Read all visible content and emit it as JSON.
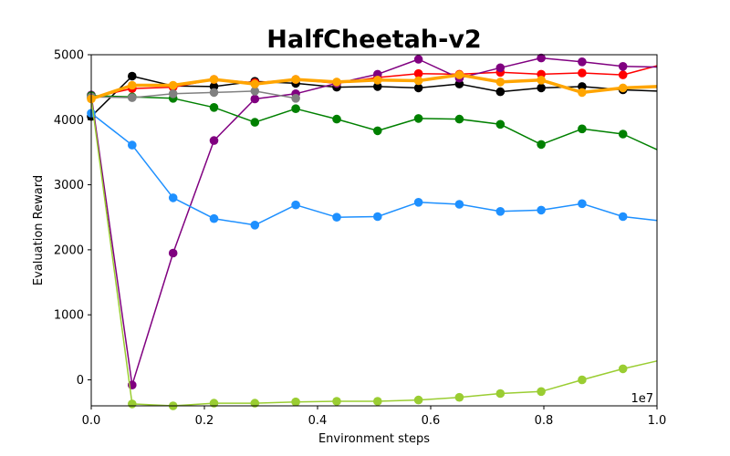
{
  "chart_data": {
    "type": "line",
    "title": "HalfCheetah-v2",
    "xlabel": "Environment steps",
    "ylabel": "Evaluation Reward",
    "x_scale_label": "1e7",
    "xlim": [
      0,
      1.0
    ],
    "ylim": [
      -400,
      5000
    ],
    "xticks": [
      0.0,
      0.2,
      0.4,
      0.6,
      0.8,
      1.0
    ],
    "xtick_labels": [
      "0.0",
      "0.2",
      "0.4",
      "0.6",
      "0.8",
      "1.0"
    ],
    "yticks": [
      0,
      1000,
      2000,
      3000,
      4000,
      5000
    ],
    "ytick_labels": [
      "0",
      "1000",
      "2000",
      "3000",
      "4000",
      "5000"
    ],
    "grid": false,
    "series": [
      {
        "color": "#000000",
        "width": 1.5,
        "x": [
          0,
          0.0723,
          0.1446,
          0.2169,
          0.2892,
          0.3615,
          0.4338,
          0.5061,
          0.5784,
          0.6507,
          0.723,
          0.7953,
          0.8676,
          0.9399,
          1.0
        ],
        "y": [
          4050,
          4670,
          4520,
          4510,
          4590,
          4560,
          4500,
          4510,
          4490,
          4550,
          4430,
          4490,
          4510,
          4460,
          4440
        ],
        "markers": 14
      },
      {
        "color": "#ff0000",
        "width": 1.5,
        "x": [
          0,
          0.0723,
          0.1446,
          0.2169,
          0.2892,
          0.3615,
          0.4338,
          0.5061,
          0.5784,
          0.6507,
          0.723,
          0.7953,
          0.8676,
          0.9399,
          1.0
        ],
        "y": [
          4340,
          4480,
          4500,
          4620,
          4570,
          4620,
          4560,
          4650,
          4710,
          4700,
          4730,
          4700,
          4720,
          4690,
          4830
        ],
        "markers": 14
      },
      {
        "color": "#800080",
        "width": 1.5,
        "x": [
          0,
          0.0723,
          0.1446,
          0.2169,
          0.2892,
          0.3615,
          0.4338,
          0.5061,
          0.5784,
          0.6507,
          0.723,
          0.7953,
          0.8676,
          0.9399,
          1.0
        ],
        "y": [
          4380,
          -80,
          1950,
          3680,
          4320,
          4400,
          4560,
          4700,
          4930,
          4640,
          4800,
          4950,
          4890,
          4820,
          4810
        ],
        "markers": 14
      },
      {
        "color": "#008000",
        "width": 1.5,
        "x": [
          0,
          0.0723,
          0.1446,
          0.2169,
          0.2892,
          0.3615,
          0.4338,
          0.5061,
          0.5784,
          0.6507,
          0.723,
          0.7953,
          0.8676,
          0.9399,
          1.0
        ],
        "y": [
          4370,
          4350,
          4330,
          4190,
          3960,
          4170,
          4010,
          3830,
          4020,
          4010,
          3930,
          3620,
          3860,
          3780,
          3540
        ],
        "markers": 14
      },
      {
        "color": "#1e90ff",
        "width": 1.5,
        "x": [
          0,
          0.0723,
          0.1446,
          0.2169,
          0.2892,
          0.3615,
          0.4338,
          0.5061,
          0.5784,
          0.6507,
          0.723,
          0.7953,
          0.8676,
          0.9399,
          1.0
        ],
        "y": [
          4100,
          3610,
          2800,
          2480,
          2380,
          2690,
          2500,
          2510,
          2730,
          2700,
          2590,
          2610,
          2710,
          2510,
          2450
        ],
        "markers": 14
      },
      {
        "color": "#9acd32",
        "width": 1.5,
        "x": [
          0,
          0.0723,
          0.1446,
          0.2169,
          0.2892,
          0.3615,
          0.4338,
          0.5061,
          0.5784,
          0.6507,
          0.723,
          0.7953,
          0.8676,
          0.9399,
          1.0
        ],
        "y": [
          4330,
          -370,
          -400,
          -360,
          -360,
          -340,
          -330,
          -330,
          -310,
          -270,
          -210,
          -180,
          0,
          170,
          290
        ],
        "markers": 14
      },
      {
        "color": "#808080",
        "width": 1.5,
        "x": [
          0,
          0.0723,
          0.1446,
          0.2169,
          0.2892,
          0.3615
        ],
        "y": [
          4350,
          4340,
          4400,
          4420,
          4440,
          4330
        ],
        "markers": 6
      },
      {
        "color": "#ffa500",
        "width": 3.5,
        "x": [
          0,
          0.0723,
          0.1446,
          0.2169,
          0.2892,
          0.3615,
          0.4338,
          0.5061,
          0.5784,
          0.6507,
          0.723,
          0.7953,
          0.8676,
          0.9399,
          1.0
        ],
        "y": [
          4320,
          4530,
          4530,
          4620,
          4550,
          4620,
          4580,
          4610,
          4600,
          4690,
          4580,
          4610,
          4420,
          4490,
          4510
        ],
        "markers": 14
      }
    ]
  }
}
